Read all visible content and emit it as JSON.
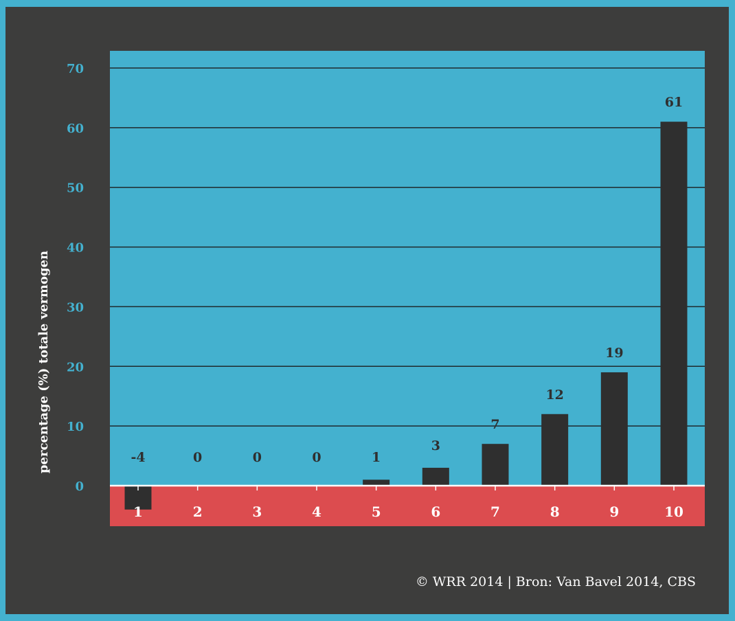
{
  "colors": {
    "frame": "#44b1cf",
    "panel": "#3d3d3c",
    "plot_bg": "#44b1cf",
    "category_band": "#dc4c4f",
    "bar": "#2f2f2f",
    "tick_label": "#44b1cf",
    "data_label": "#2f2f2f",
    "category_label": "#ffffff"
  },
  "chart_data": {
    "type": "bar",
    "categories": [
      "1",
      "2",
      "3",
      "4",
      "5",
      "6",
      "7",
      "8",
      "9",
      "10"
    ],
    "values": [
      -4,
      0,
      0,
      0,
      1,
      3,
      7,
      12,
      19,
      61
    ],
    "data_labels": [
      "-4",
      "0",
      "0",
      "0",
      "1",
      "3",
      "7",
      "12",
      "19",
      "61"
    ],
    "ylabel": "percentage (%) totale vermogen",
    "xlabel": "",
    "ylim": [
      0,
      70
    ],
    "yticks": [
      0,
      10,
      20,
      30,
      40,
      50,
      60,
      70
    ],
    "grid": true
  },
  "footer": {
    "credit": "© WRR 2014 | Bron: Van Bavel 2014, CBS"
  }
}
